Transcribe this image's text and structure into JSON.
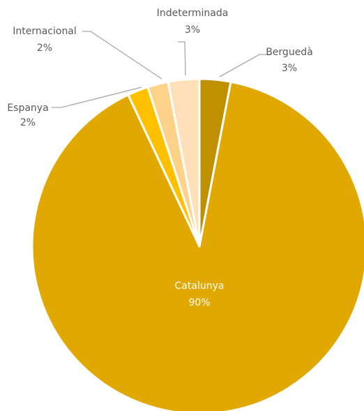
{
  "chart_data": {
    "type": "pie",
    "title": "",
    "slices": [
      {
        "label": "Berguedà",
        "value": 3,
        "pct_label": "3%",
        "color": "#BF9000"
      },
      {
        "label": "Catalunya",
        "value": 90,
        "pct_label": "90%",
        "color": "#E0A800"
      },
      {
        "label": "Espanya",
        "value": 2,
        "pct_label": "2%",
        "color": "#FFC000"
      },
      {
        "label": "Internacional",
        "value": 2,
        "pct_label": "2%",
        "color": "#FFD28A"
      },
      {
        "label": "Indeterminada",
        "value": 3,
        "pct_label": "3%",
        "color": "#FFE0B8"
      }
    ],
    "legend": "none",
    "data_labels": "category and percentage",
    "leader_line_color": "#A6A6A6"
  }
}
